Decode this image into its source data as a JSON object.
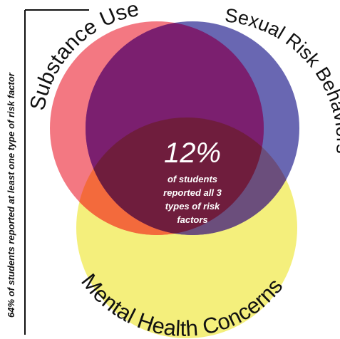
{
  "side_note": "64% of students reported at least one type of risk factor",
  "sets": [
    {
      "label": "Substance Use",
      "color": "#ee4452"
    },
    {
      "label": "Sexual Risk Behaviors",
      "color": "#3f3c9c"
    },
    {
      "label": "Mental Health Concerns",
      "color": "#f4ef7c"
    }
  ],
  "center": {
    "percent": "12%",
    "caption_lines": [
      "of students",
      "reported all 3",
      "types of risk",
      "factors"
    ]
  },
  "overlap_colors": {
    "substance_sexual": "#7b1f6f",
    "substance_mental": "#f36a3c",
    "sexual_mental": "#6b4e7c",
    "all_three": "#6f1d3d"
  }
}
